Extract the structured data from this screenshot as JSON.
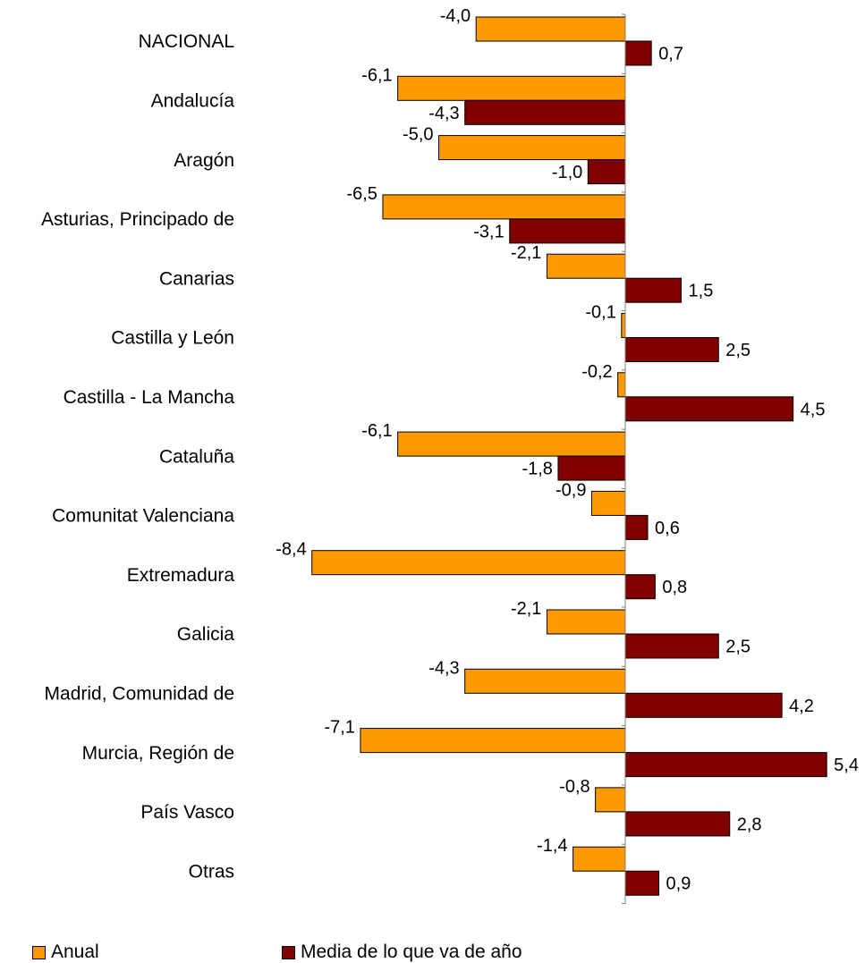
{
  "chart_data": {
    "type": "bar",
    "orientation": "horizontal",
    "categories": [
      "NACIONAL",
      "Andalucía",
      "Aragón",
      "Asturias, Principado de",
      "Canarias",
      "Castilla y León",
      "Castilla - La Mancha",
      "Cataluña",
      "Comunitat Valenciana",
      "Extremadura",
      "Galicia",
      "Madrid, Comunidad de",
      "Murcia, Región de",
      "País Vasco",
      "Otras"
    ],
    "series": [
      {
        "name": "Anual",
        "color": "#FF9900",
        "values": [
          -4.0,
          -6.1,
          -5.0,
          -6.5,
          -2.1,
          -0.1,
          -0.2,
          -6.1,
          -0.9,
          -8.4,
          -2.1,
          -4.3,
          -7.1,
          -0.8,
          -1.4
        ],
        "labels": [
          "-4,0",
          "-6,1",
          "-5,0",
          "-6,5",
          "-2,1",
          "-0,1",
          "-0,2",
          "-6,1",
          "-0,9",
          "-8,4",
          "-2,1",
          "-4,3",
          "-7,1",
          "-0,8",
          "-1,4"
        ]
      },
      {
        "name": "Media de lo que va de año",
        "color": "#800000",
        "values": [
          0.7,
          -4.3,
          -1.0,
          -3.1,
          1.5,
          2.5,
          4.5,
          -1.8,
          0.6,
          0.8,
          2.5,
          4.2,
          5.4,
          2.8,
          0.9
        ],
        "labels": [
          "0,7",
          "-4,3",
          "-1,0",
          "-3,1",
          "1,5",
          "2,5",
          "4,5",
          "-1,8",
          "0,6",
          "0,8",
          "2,5",
          "4,2",
          "5,4",
          "2,8",
          "0,9"
        ]
      }
    ],
    "grid": false,
    "legend_position": "bottom"
  }
}
